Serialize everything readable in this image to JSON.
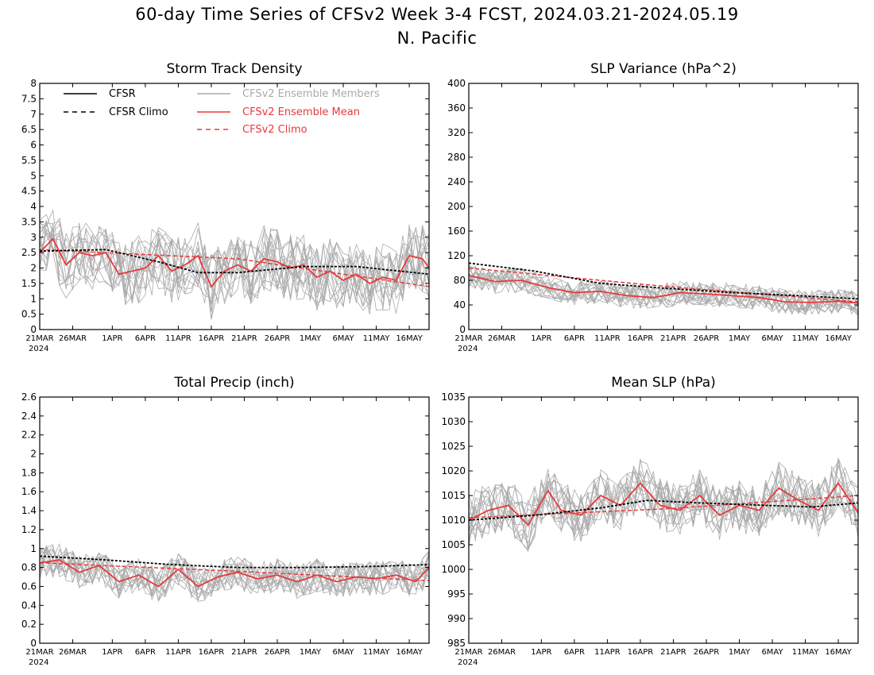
{
  "figure": {
    "title_line1": "60-day Time Series of CFSv2 Week 3-4 FCST, 2024.03.21-2024.05.19",
    "title_line2": "N. Pacific"
  },
  "legend": [
    {
      "label": "CFSR",
      "color": "#000000",
      "dash": false
    },
    {
      "label": "CFSR Climo",
      "color": "#000000",
      "dash": true
    },
    {
      "label": "CFSv2 Ensemble Members",
      "color": "#aaaaaa",
      "dash": false
    },
    {
      "label": "CFSv2 Ensemble Mean",
      "color": "#e8393c",
      "dash": false
    },
    {
      "label": "CFSv2 Climo",
      "color": "#e8393c",
      "dash": true
    }
  ],
  "colors": {
    "members": "#aaaaaa",
    "mean": "#e8393c",
    "cfsr": "#000000"
  },
  "x_ticks": [
    "21MAR",
    "26MAR",
    "1APR",
    "6APR",
    "11APR",
    "16APR",
    "21APR",
    "26APR",
    "1MAY",
    "6MAY",
    "11MAY",
    "16MAY"
  ],
  "x_year": "2024",
  "chart_data": [
    {
      "type": "line",
      "title": "Storm Track Density",
      "ylim": [
        0,
        8
      ],
      "yticks": [
        "0",
        "0.5",
        "1",
        "1.5",
        "2",
        "2.5",
        "3",
        "3.5",
        "4",
        "4.5",
        "5",
        "5.5",
        "6",
        "6.5",
        "7",
        "7.5",
        "8"
      ],
      "x_range": [
        "2024-03-21",
        "2024-05-19"
      ],
      "series": [
        {
          "name": "CFSR Climo",
          "x": [
            "2024-03-21",
            "2024-03-31",
            "2024-04-08",
            "2024-04-14",
            "2024-04-20",
            "2024-04-30",
            "2024-05-08",
            "2024-05-19"
          ],
          "values": [
            2.55,
            2.6,
            2.2,
            1.85,
            1.85,
            2.05,
            2.05,
            1.8
          ]
        },
        {
          "name": "CFSv2 Climo",
          "x": [
            "2024-03-21",
            "2024-04-20",
            "2024-05-19"
          ],
          "values": [
            2.6,
            2.3,
            1.4
          ]
        },
        {
          "name": "CFSv2 Ensemble Mean",
          "x": [
            "2024-03-21",
            "2024-03-23",
            "2024-03-25",
            "2024-03-27",
            "2024-03-29",
            "2024-03-31",
            "2024-04-02",
            "2024-04-04",
            "2024-04-06",
            "2024-04-08",
            "2024-04-10",
            "2024-04-12",
            "2024-04-14",
            "2024-04-16",
            "2024-04-18",
            "2024-04-20",
            "2024-04-22",
            "2024-04-24",
            "2024-04-26",
            "2024-04-28",
            "2024-04-30",
            "2024-05-02",
            "2024-05-04",
            "2024-05-06",
            "2024-05-08",
            "2024-05-10",
            "2024-05-12",
            "2024-05-14",
            "2024-05-16",
            "2024-05-18",
            "2024-05-19"
          ],
          "values": [
            2.5,
            2.95,
            2.1,
            2.5,
            2.4,
            2.5,
            1.8,
            1.9,
            2.0,
            2.4,
            1.9,
            2.1,
            2.4,
            1.4,
            1.9,
            2.1,
            1.9,
            2.3,
            2.2,
            2.0,
            2.1,
            1.7,
            1.9,
            1.6,
            1.8,
            1.5,
            1.7,
            1.6,
            2.4,
            2.3,
            2.0
          ]
        },
        {
          "name": "CFSv2 Ensemble Members",
          "center": 2.3,
          "spread": 1.1
        }
      ]
    },
    {
      "type": "line",
      "title": "SLP Variance (hPa^2)",
      "ylim": [
        0,
        400
      ],
      "yticks": [
        "0",
        "40",
        "80",
        "120",
        "160",
        "200",
        "240",
        "280",
        "320",
        "360",
        "400"
      ],
      "x_range": [
        "2024-03-21",
        "2024-05-19"
      ],
      "series": [
        {
          "name": "CFSR Climo",
          "x": [
            "2024-03-21",
            "2024-03-31",
            "2024-04-10",
            "2024-04-20",
            "2024-04-30",
            "2024-05-10",
            "2024-05-19"
          ],
          "values": [
            108,
            95,
            75,
            67,
            60,
            55,
            50
          ]
        },
        {
          "name": "CFSv2 Climo",
          "x": [
            "2024-03-21",
            "2024-04-20",
            "2024-05-19"
          ],
          "values": [
            100,
            70,
            45
          ]
        },
        {
          "name": "CFSv2 Ensemble Mean",
          "x": [
            "2024-03-21",
            "2024-03-25",
            "2024-03-29",
            "2024-04-02",
            "2024-04-06",
            "2024-04-10",
            "2024-04-14",
            "2024-04-18",
            "2024-04-22",
            "2024-04-26",
            "2024-04-30",
            "2024-05-04",
            "2024-05-08",
            "2024-05-12",
            "2024-05-16",
            "2024-05-19"
          ],
          "values": [
            88,
            78,
            80,
            68,
            60,
            62,
            55,
            52,
            60,
            58,
            55,
            52,
            45,
            44,
            46,
            43
          ]
        },
        {
          "name": "CFSv2 Ensemble Members",
          "center": 65,
          "spread": 20
        }
      ]
    },
    {
      "type": "line",
      "title": "Total Precip (inch)",
      "ylim": [
        0,
        2.6
      ],
      "yticks": [
        "0",
        "0.2",
        "0.4",
        "0.6",
        "0.8",
        "1",
        "1.2",
        "1.4",
        "1.6",
        "1.8",
        "2",
        "2.2",
        "2.4",
        "2.6"
      ],
      "x_range": [
        "2024-03-21",
        "2024-05-19"
      ],
      "series": [
        {
          "name": "CFSR Climo",
          "x": [
            "2024-03-21",
            "2024-03-31",
            "2024-04-10",
            "2024-04-20",
            "2024-04-30",
            "2024-05-10",
            "2024-05-19"
          ],
          "values": [
            0.92,
            0.88,
            0.83,
            0.8,
            0.8,
            0.81,
            0.83
          ]
        },
        {
          "name": "CFSv2 Climo",
          "x": [
            "2024-03-21",
            "2024-04-20",
            "2024-05-19"
          ],
          "values": [
            0.85,
            0.76,
            0.66
          ]
        },
        {
          "name": "CFSv2 Ensemble Mean",
          "x": [
            "2024-03-21",
            "2024-03-24",
            "2024-03-27",
            "2024-03-30",
            "2024-04-02",
            "2024-04-05",
            "2024-04-08",
            "2024-04-11",
            "2024-04-14",
            "2024-04-17",
            "2024-04-20",
            "2024-04-23",
            "2024-04-26",
            "2024-04-29",
            "2024-05-02",
            "2024-05-05",
            "2024-05-08",
            "2024-05-11",
            "2024-05-14",
            "2024-05-17",
            "2024-05-19"
          ],
          "values": [
            0.85,
            0.88,
            0.75,
            0.82,
            0.65,
            0.72,
            0.6,
            0.78,
            0.6,
            0.7,
            0.75,
            0.68,
            0.72,
            0.65,
            0.72,
            0.65,
            0.7,
            0.68,
            0.72,
            0.65,
            0.8
          ]
        },
        {
          "name": "CFSv2 Ensemble Members",
          "center": 0.72,
          "spread": 0.18
        }
      ]
    },
    {
      "type": "line",
      "title": "Mean SLP (hPa)",
      "ylim": [
        985,
        1035
      ],
      "yticks": [
        "985",
        "990",
        "995",
        "1000",
        "1005",
        "1010",
        "1015",
        "1020",
        "1025",
        "1030",
        "1035"
      ],
      "x_range": [
        "2024-03-21",
        "2024-05-19"
      ],
      "series": [
        {
          "name": "CFSR Climo",
          "x": [
            "2024-03-21",
            "2024-03-31",
            "2024-04-10",
            "2024-04-17",
            "2024-04-25",
            "2024-05-05",
            "2024-05-12",
            "2024-05-19"
          ],
          "values": [
            1010,
            1011,
            1012.5,
            1014,
            1013.5,
            1013,
            1012.7,
            1013.5
          ]
        },
        {
          "name": "CFSv2 Climo",
          "x": [
            "2024-03-21",
            "2024-04-20",
            "2024-05-19"
          ],
          "values": [
            1010.5,
            1012.3,
            1015
          ]
        },
        {
          "name": "CFSv2 Ensemble Mean",
          "x": [
            "2024-03-21",
            "2024-03-24",
            "2024-03-27",
            "2024-03-30",
            "2024-04-02",
            "2024-04-04",
            "2024-04-07",
            "2024-04-10",
            "2024-04-13",
            "2024-04-16",
            "2024-04-19",
            "2024-04-22",
            "2024-04-25",
            "2024-04-28",
            "2024-05-01",
            "2024-05-04",
            "2024-05-07",
            "2024-05-10",
            "2024-05-13",
            "2024-05-16",
            "2024-05-19"
          ],
          "values": [
            1010,
            1012,
            1013,
            1009,
            1016,
            1012,
            1011,
            1015,
            1013,
            1017.5,
            1013,
            1012,
            1015,
            1011,
            1013,
            1012,
            1016.5,
            1014,
            1012,
            1017.5,
            1011.5
          ]
        },
        {
          "name": "CFSv2 Ensemble Members",
          "center": 1013,
          "spread": 5.5
        }
      ]
    }
  ]
}
